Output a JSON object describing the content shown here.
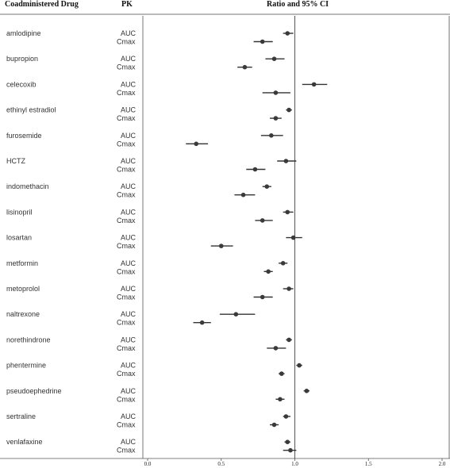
{
  "headers": {
    "drug": "Coadministered Drug",
    "pk": "PK",
    "ratio": "Ratio and 95% CI"
  },
  "chart_data": {
    "type": "forest",
    "xlim": [
      0,
      2
    ],
    "xticks": [
      "0.0",
      "0.5",
      "1.0",
      "1.5",
      "2.0"
    ],
    "reference_line": 1.0,
    "rows": [
      {
        "drug": "amlodipine",
        "auc": {
          "label": "AUC",
          "est": 0.95,
          "lo": 0.92,
          "hi": 0.99
        },
        "cmax": {
          "label": "Cmax",
          "est": 0.78,
          "lo": 0.72,
          "hi": 0.85
        }
      },
      {
        "drug": "bupropion",
        "auc": {
          "label": "AUC",
          "est": 0.86,
          "lo": 0.8,
          "hi": 0.93
        },
        "cmax": {
          "label": "Cmax",
          "est": 0.66,
          "lo": 0.61,
          "hi": 0.71
        }
      },
      {
        "drug": "celecoxib",
        "auc": {
          "label": "AUC",
          "est": 1.13,
          "lo": 1.05,
          "hi": 1.22
        },
        "cmax": {
          "label": "Cmax",
          "est": 0.87,
          "lo": 0.78,
          "hi": 0.97
        }
      },
      {
        "drug": "ethinyl estradiol",
        "auc": {
          "label": "AUC",
          "est": 0.96,
          "lo": 0.94,
          "hi": 0.98
        },
        "cmax": {
          "label": "Cmax",
          "est": 0.87,
          "lo": 0.83,
          "hi": 0.91
        }
      },
      {
        "drug": "furosemide",
        "auc": {
          "label": "AUC",
          "est": 0.84,
          "lo": 0.77,
          "hi": 0.92
        },
        "cmax": {
          "label": "Cmax",
          "est": 0.33,
          "lo": 0.26,
          "hi": 0.41
        }
      },
      {
        "drug": "HCTZ",
        "auc": {
          "label": "AUC",
          "est": 0.94,
          "lo": 0.88,
          "hi": 1.01
        },
        "cmax": {
          "label": "Cmax",
          "est": 0.73,
          "lo": 0.67,
          "hi": 0.8
        }
      },
      {
        "drug": "indomethacin",
        "auc": {
          "label": "AUC",
          "est": 0.81,
          "lo": 0.78,
          "hi": 0.84
        },
        "cmax": {
          "label": "Cmax",
          "est": 0.65,
          "lo": 0.59,
          "hi": 0.73
        }
      },
      {
        "drug": "lisinopril",
        "auc": {
          "label": "AUC",
          "est": 0.95,
          "lo": 0.92,
          "hi": 0.99
        },
        "cmax": {
          "label": "Cmax",
          "est": 0.78,
          "lo": 0.73,
          "hi": 0.85
        }
      },
      {
        "drug": "losartan",
        "auc": {
          "label": "AUC",
          "est": 0.99,
          "lo": 0.94,
          "hi": 1.05
        },
        "cmax": {
          "label": "Cmax",
          "est": 0.5,
          "lo": 0.43,
          "hi": 0.58
        }
      },
      {
        "drug": "metformin",
        "auc": {
          "label": "AUC",
          "est": 0.92,
          "lo": 0.89,
          "hi": 0.95
        },
        "cmax": {
          "label": "Cmax",
          "est": 0.82,
          "lo": 0.79,
          "hi": 0.85
        }
      },
      {
        "drug": "metoprolol",
        "auc": {
          "label": "AUC",
          "est": 0.96,
          "lo": 0.92,
          "hi": 0.99
        },
        "cmax": {
          "label": "Cmax",
          "est": 0.78,
          "lo": 0.72,
          "hi": 0.85
        }
      },
      {
        "drug": "naltrexone",
        "auc": {
          "label": "AUC",
          "est": 0.6,
          "lo": 0.49,
          "hi": 0.73
        },
        "cmax": {
          "label": "Cmax",
          "est": 0.37,
          "lo": 0.31,
          "hi": 0.43
        }
      },
      {
        "drug": "norethindrone",
        "auc": {
          "label": "AUC",
          "est": 0.96,
          "lo": 0.94,
          "hi": 0.98
        },
        "cmax": {
          "label": "Cmax",
          "est": 0.87,
          "lo": 0.81,
          "hi": 0.94
        }
      },
      {
        "drug": "phentermine",
        "auc": {
          "label": "AUC",
          "est": 1.03,
          "lo": 1.01,
          "hi": 1.05
        },
        "cmax": {
          "label": "Cmax",
          "est": 0.91,
          "lo": 0.89,
          "hi": 0.93
        }
      },
      {
        "drug": "pseudoephedrine",
        "auc": {
          "label": "AUC",
          "est": 1.08,
          "lo": 1.06,
          "hi": 1.1
        },
        "cmax": {
          "label": "Cmax",
          "est": 0.9,
          "lo": 0.87,
          "hi": 0.93
        }
      },
      {
        "drug": "sertraline",
        "auc": {
          "label": "AUC",
          "est": 0.94,
          "lo": 0.92,
          "hi": 0.97
        },
        "cmax": {
          "label": "Cmax",
          "est": 0.86,
          "lo": 0.83,
          "hi": 0.89
        }
      },
      {
        "drug": "venlafaxine",
        "auc": {
          "label": "AUC",
          "est": 0.95,
          "lo": 0.93,
          "hi": 0.97
        },
        "cmax": {
          "label": "Cmax",
          "est": 0.97,
          "lo": 0.92,
          "hi": 1.01
        }
      }
    ]
  }
}
